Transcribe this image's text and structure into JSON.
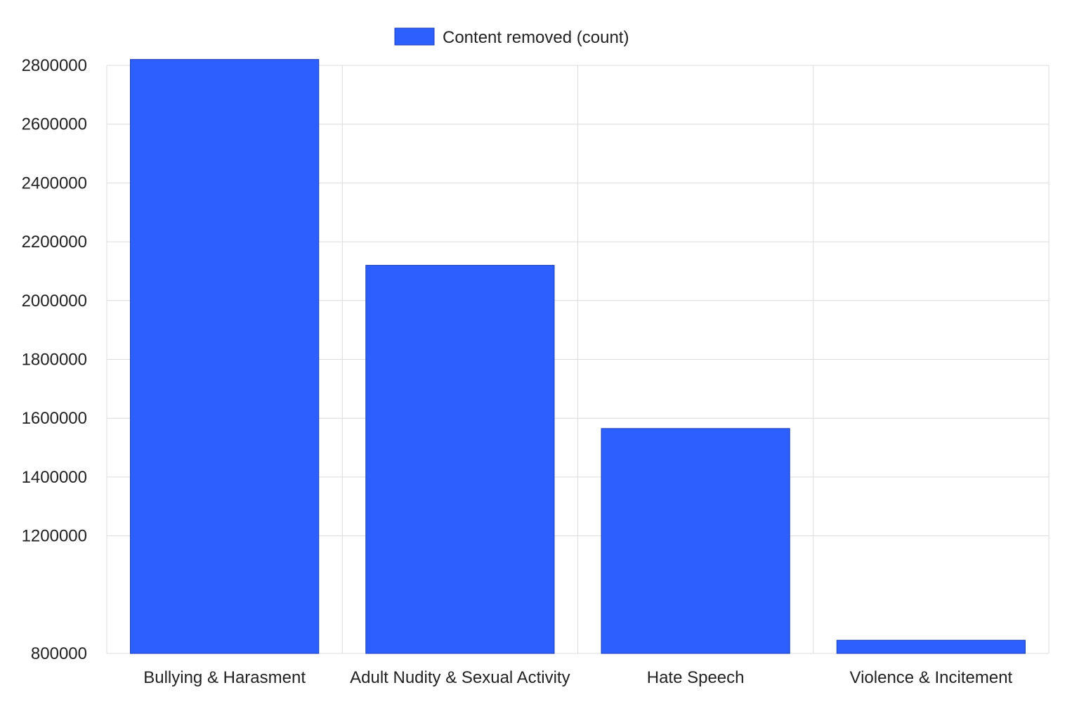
{
  "chart_data": {
    "type": "bar",
    "categories": [
      "Bullying & Harasment",
      "Adult Nudity & Sexual Activity",
      "Hate Speech",
      "Violence & Incitement"
    ],
    "series": [
      {
        "name": "Content removed (count)",
        "values": [
          2820000,
          2120000,
          1565000,
          845000
        ],
        "color": "#2d5fff"
      }
    ],
    "yticks": [
      "800000",
      "1200000",
      "1400000",
      "1600000",
      "1800000",
      "2000000",
      "2200000",
      "2400000",
      "2600000",
      "2800000"
    ],
    "ylim": [
      800000,
      2800000
    ],
    "grid": true,
    "legend": "top-center",
    "title": "",
    "xlabel": "",
    "ylabel": ""
  }
}
